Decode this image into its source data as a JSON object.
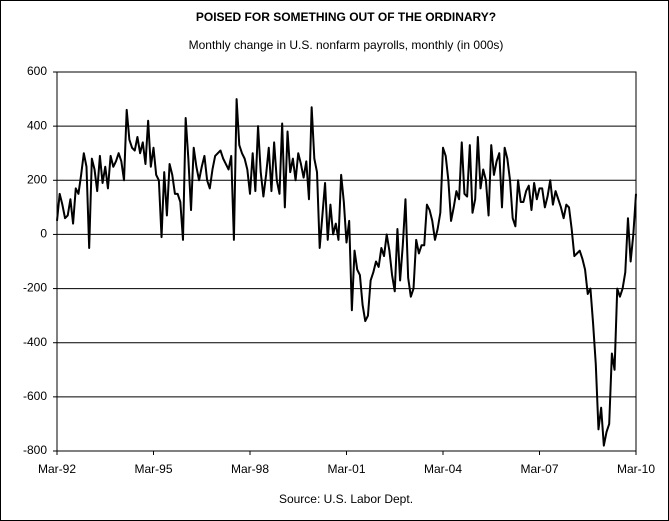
{
  "chart_data": {
    "type": "line",
    "title": "POISED FOR SOMETHING OUT OF THE ORDINARY?",
    "subtitle": "Monthly change in U.S. nonfarm payrolls, monthly (in 000s)",
    "source": "Source: U.S. Labor Dept.",
    "color": "#000000",
    "grid": true,
    "ylim": [
      -800,
      600
    ],
    "yticks": [
      -800,
      -600,
      -400,
      -200,
      0,
      200,
      400,
      600
    ],
    "categories": [
      "Mar-92",
      null,
      null,
      null,
      null,
      null,
      null,
      null,
      null,
      null,
      null,
      null,
      null,
      null,
      null,
      null,
      null,
      null,
      null,
      null,
      null,
      null,
      null,
      null,
      null,
      null,
      null,
      null,
      null,
      null,
      null,
      null,
      null,
      null,
      null,
      null,
      "Mar-95",
      null,
      null,
      null,
      null,
      null,
      null,
      null,
      null,
      null,
      null,
      null,
      null,
      null,
      null,
      null,
      null,
      null,
      null,
      null,
      null,
      null,
      null,
      null,
      null,
      null,
      null,
      null,
      null,
      null,
      null,
      null,
      null,
      null,
      null,
      null,
      "Mar-98",
      null,
      null,
      null,
      null,
      null,
      null,
      null,
      null,
      null,
      null,
      null,
      null,
      null,
      null,
      null,
      null,
      null,
      null,
      null,
      null,
      null,
      null,
      null,
      null,
      null,
      null,
      null,
      null,
      null,
      null,
      null,
      null,
      null,
      null,
      null,
      "Mar-01",
      null,
      null,
      null,
      null,
      null,
      null,
      null,
      null,
      null,
      null,
      null,
      null,
      null,
      null,
      null,
      null,
      null,
      null,
      null,
      null,
      null,
      null,
      null,
      null,
      null,
      null,
      null,
      null,
      null,
      null,
      null,
      null,
      null,
      null,
      null,
      "Mar-04",
      null,
      null,
      null,
      null,
      null,
      null,
      null,
      null,
      null,
      null,
      null,
      null,
      null,
      null,
      null,
      null,
      null,
      null,
      null,
      null,
      null,
      null,
      null,
      null,
      null,
      null,
      null,
      null,
      null,
      null,
      null,
      null,
      null,
      null,
      null,
      "Mar-07",
      null,
      null,
      null,
      null,
      null,
      null,
      null,
      null,
      null,
      null,
      null,
      null,
      null,
      null,
      null,
      null,
      null,
      null,
      null,
      null,
      null,
      null,
      null,
      null,
      null,
      null,
      null,
      null,
      null,
      null,
      null,
      null,
      null,
      null,
      null,
      "Mar-10"
    ],
    "values": [
      50,
      150,
      110,
      60,
      70,
      130,
      40,
      170,
      150,
      220,
      300,
      250,
      -50,
      280,
      240,
      160,
      290,
      190,
      250,
      170,
      290,
      250,
      270,
      300,
      270,
      200,
      460,
      350,
      320,
      310,
      360,
      300,
      340,
      260,
      420,
      250,
      320,
      220,
      200,
      -10,
      230,
      70,
      260,
      220,
      150,
      150,
      120,
      -20,
      430,
      280,
      90,
      320,
      250,
      200,
      250,
      290,
      200,
      170,
      240,
      290,
      300,
      310,
      280,
      260,
      240,
      290,
      -20,
      500,
      330,
      300,
      280,
      240,
      150,
      300,
      160,
      400,
      230,
      140,
      220,
      320,
      160,
      340,
      200,
      150,
      410,
      100,
      380,
      230,
      280,
      200,
      300,
      260,
      210,
      270,
      130,
      470,
      280,
      230,
      -50,
      70,
      190,
      -20,
      110,
      0,
      40,
      -20,
      220,
      120,
      -30,
      50,
      -280,
      -60,
      -130,
      -150,
      -260,
      -320,
      -300,
      -170,
      -140,
      -100,
      -120,
      -50,
      -80,
      0,
      -60,
      -150,
      -210,
      20,
      -170,
      -40,
      130,
      -160,
      -230,
      -200,
      -20,
      -70,
      -40,
      -40,
      110,
      90,
      50,
      -20,
      20,
      80,
      320,
      290,
      200,
      50,
      100,
      160,
      130,
      340,
      150,
      140,
      330,
      80,
      130,
      360,
      170,
      240,
      200,
      70,
      330,
      220,
      270,
      300,
      100,
      320,
      280,
      200,
      60,
      30,
      200,
      120,
      120,
      160,
      180,
      90,
      190,
      130,
      170,
      170,
      100,
      140,
      200,
      110,
      160,
      130,
      100,
      60,
      110,
      100,
      20,
      -80,
      -70,
      -60,
      -90,
      -130,
      -220,
      -200,
      -330,
      -480,
      -720,
      -640,
      -780,
      -730,
      -700,
      -440,
      -500,
      -200,
      -230,
      -200,
      -140,
      60,
      -100,
      0,
      150
    ]
  }
}
